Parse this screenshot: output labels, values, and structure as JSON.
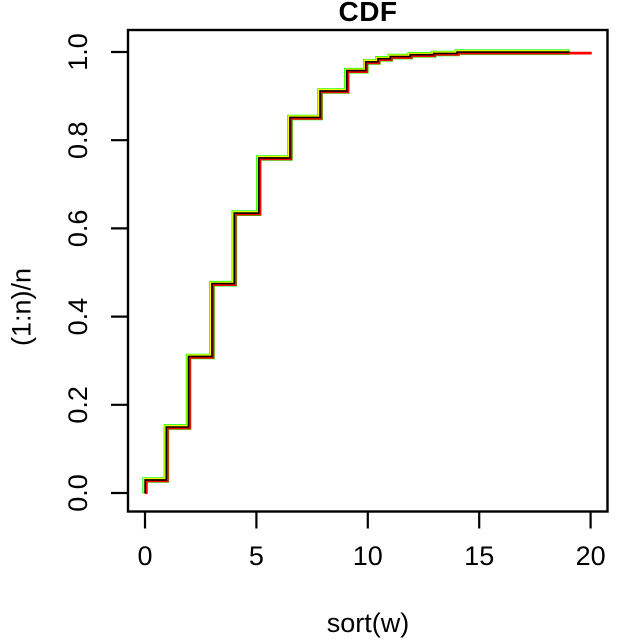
{
  "chart_data": {
    "type": "line",
    "subtype": "ecdf-step",
    "title": "CDF",
    "xlabel": "sort(w)",
    "ylabel": "(1:n)/n",
    "xlim": [
      0,
      20
    ],
    "ylim": [
      0.0,
      1.0
    ],
    "grid": false,
    "legend_position": "none",
    "x_ticks": [
      "0",
      "5",
      "10",
      "15",
      "20"
    ],
    "x_tick_values": [
      0,
      5,
      10,
      15,
      20
    ],
    "y_ticks": [
      "0.0",
      "0.2",
      "0.4",
      "0.6",
      "0.8",
      "1.0"
    ],
    "y_tick_values": [
      0.0,
      0.2,
      0.4,
      0.6,
      0.8,
      1.0
    ],
    "step_points": {
      "x": [
        0,
        0,
        0.95,
        1.95,
        3.0,
        4.0,
        5.1,
        6.5,
        7.85,
        9.05,
        9.9,
        10.45,
        11.0,
        11.9,
        12.95,
        14.0
      ],
      "y": [
        0.0,
        0.03,
        0.15,
        0.31,
        0.475,
        0.635,
        0.76,
        0.852,
        0.912,
        0.958,
        0.978,
        0.985,
        0.99,
        0.994,
        0.997,
        1.0
      ]
    },
    "series": [
      {
        "name": "green-line",
        "color": "#00FF00",
        "width": 5.6,
        "x_end": 19.05,
        "dx": 0.2,
        "dy": 0.2
      },
      {
        "name": "red-line",
        "color": "#FF0000",
        "width": 2.8,
        "x_end": 20.0,
        "dx": 1.1,
        "dy": 1.1
      },
      {
        "name": "yellow-line",
        "color": "#FFFF00",
        "width": 2.4,
        "x_end": 19.05,
        "dx": -0.7,
        "dy": -0.7
      },
      {
        "name": "black-line",
        "color": "#000000",
        "width": 1.6,
        "x_end": 19.05,
        "dx": 0.1,
        "dy": 0.1
      }
    ],
    "axis_color": "#000000",
    "background": "#ffffff"
  }
}
